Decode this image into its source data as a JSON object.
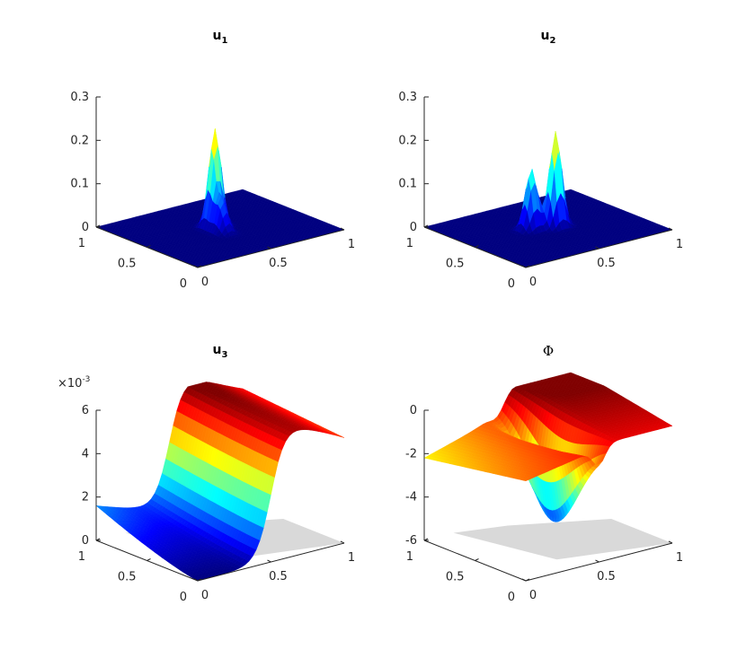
{
  "chart_data": [
    {
      "type": "surface",
      "title": "u",
      "title_subscript": "1",
      "colormap": "jet",
      "zlim": [
        0,
        0.3
      ],
      "ztick_labels": [
        "0",
        "0.1",
        "0.2",
        "0.3"
      ],
      "x_tick_labels": [
        "0",
        "0.5",
        "1"
      ],
      "y_tick_labels": [
        "0",
        "0.5",
        "1"
      ],
      "surface": {
        "base": 0.0,
        "ridges": [
          {
            "x": 0.5,
            "y": 0.55,
            "amp": 0.22,
            "wx": 0.05,
            "wy": 0.05
          },
          {
            "x": 0.47,
            "y": 0.45,
            "amp": 0.08,
            "wx": 0.04,
            "wy": 0.07
          }
        ]
      }
    },
    {
      "type": "surface",
      "title": "u",
      "title_subscript": "2",
      "colormap": "jet",
      "zlim": [
        0,
        0.3
      ],
      "ztick_labels": [
        "0",
        "0.1",
        "0.2",
        "0.3"
      ],
      "x_tick_labels": [
        "0",
        "0.5",
        "1"
      ],
      "y_tick_labels": [
        "0",
        "0.5",
        "1"
      ],
      "surface": {
        "base": 0.0,
        "ridges": [
          {
            "x": 0.55,
            "y": 0.5,
            "amp": 0.22,
            "wx": 0.05,
            "wy": 0.05
          },
          {
            "x": 0.42,
            "y": 0.55,
            "amp": 0.14,
            "wx": 0.05,
            "wy": 0.05
          }
        ]
      }
    },
    {
      "type": "surface",
      "title": "u",
      "title_subscript": "3",
      "colormap": "jet",
      "zlim": [
        0,
        0.006
      ],
      "ztick_labels": [
        "0",
        "2",
        "4",
        "6"
      ],
      "z_multiplier": "×10",
      "z_multiplier_exp": "-3",
      "x_tick_labels": [
        "0",
        "0.5",
        "1"
      ],
      "y_tick_labels": [
        "0",
        "0.5",
        "1"
      ],
      "surface": {
        "kind": "u3"
      }
    },
    {
      "type": "surface",
      "title": "Φ",
      "colormap": "jet",
      "zlim": [
        -6,
        0
      ],
      "ztick_labels": [
        "-6",
        "-4",
        "-2",
        "0"
      ],
      "x_tick_labels": [
        "0",
        "0.5",
        "1"
      ],
      "y_tick_labels": [
        "0",
        "0.5",
        "1"
      ],
      "surface": {
        "kind": "phi"
      }
    }
  ]
}
